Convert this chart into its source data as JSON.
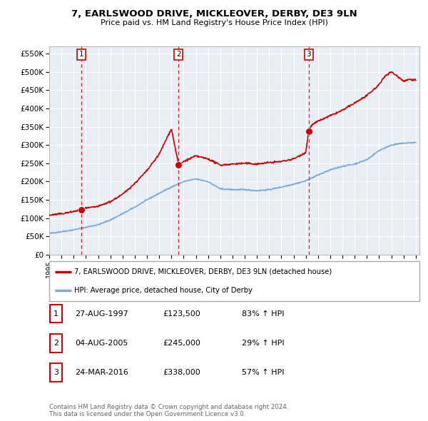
{
  "title": "7, EARLSWOOD DRIVE, MICKLEOVER, DERBY, DE3 9LN",
  "subtitle": "Price paid vs. HM Land Registry's House Price Index (HPI)",
  "ylabel_ticks": [
    "£0",
    "£50K",
    "£100K",
    "£150K",
    "£200K",
    "£250K",
    "£300K",
    "£350K",
    "£400K",
    "£450K",
    "£500K",
    "£550K"
  ],
  "ytick_values": [
    0,
    50000,
    100000,
    150000,
    200000,
    250000,
    300000,
    350000,
    400000,
    450000,
    500000,
    550000
  ],
  "ylim": [
    0,
    570000
  ],
  "xlim_start": 1995.0,
  "xlim_end": 2025.3,
  "transactions": [
    {
      "num": 1,
      "date": "27-AUG-1997",
      "year": 1997.65,
      "price": 123500,
      "pct": "83%",
      "dir": "↑"
    },
    {
      "num": 2,
      "date": "04-AUG-2005",
      "year": 2005.59,
      "price": 245000,
      "pct": "29%",
      "dir": "↑"
    },
    {
      "num": 3,
      "date": "24-MAR-2016",
      "year": 2016.23,
      "price": 338000,
      "pct": "57%",
      "dir": "↑"
    }
  ],
  "hpi_line_color": "#7aaadd",
  "price_line_color": "#cc0000",
  "dashed_line_color": "#cc0000",
  "transaction_marker_color": "#cc0000",
  "background_color": "#ffffff",
  "plot_bg_color": "#e8eef4",
  "grid_color": "#ffffff",
  "legend_label_red": "7, EARLSWOOD DRIVE, MICKLEOVER, DERBY, DE3 9LN (detached house)",
  "legend_label_blue": "HPI: Average price, detached house, City of Derby",
  "footer": "Contains HM Land Registry data © Crown copyright and database right 2024.\nThis data is licensed under the Open Government Licence v3.0.",
  "xtick_years": [
    1995,
    1996,
    1997,
    1998,
    1999,
    2000,
    2001,
    2002,
    2003,
    2004,
    2005,
    2006,
    2007,
    2008,
    2009,
    2010,
    2011,
    2012,
    2013,
    2014,
    2015,
    2016,
    2017,
    2018,
    2019,
    2020,
    2021,
    2022,
    2023,
    2024,
    2025
  ],
  "hpi_keypoints_x": [
    1995,
    1996,
    1997,
    1998,
    1999,
    2000,
    2001,
    2002,
    2003,
    2004,
    2005,
    2006,
    2007,
    2008,
    2009,
    2010,
    2011,
    2012,
    2013,
    2014,
    2015,
    2016,
    2017,
    2018,
    2019,
    2020,
    2021,
    2022,
    2023,
    2024,
    2025
  ],
  "hpi_keypoints_y": [
    58000,
    63000,
    68000,
    75000,
    82000,
    95000,
    112000,
    130000,
    150000,
    168000,
    185000,
    200000,
    207000,
    200000,
    180000,
    178000,
    178000,
    175000,
    178000,
    185000,
    193000,
    202000,
    218000,
    232000,
    242000,
    248000,
    260000,
    285000,
    300000,
    305000,
    307000
  ],
  "price_keypoints_x": [
    1995,
    1996,
    1997,
    1997.65,
    1998,
    1999,
    2000,
    2001,
    2002,
    2003,
    2004,
    2004.5,
    2005.0,
    2005.59,
    2006,
    2007,
    2008,
    2009,
    2010,
    2011,
    2012,
    2013,
    2014,
    2015,
    2016.0,
    2016.23,
    2016.5,
    2017,
    2018,
    2019,
    2020,
    2021,
    2022,
    2022.5,
    2023,
    2023.5,
    2024,
    2024.5,
    2025
  ],
  "price_keypoints_y": [
    108000,
    112000,
    118000,
    123500,
    127000,
    132000,
    145000,
    165000,
    195000,
    230000,
    275000,
    310000,
    345000,
    245000,
    255000,
    270000,
    262000,
    245000,
    248000,
    250000,
    248000,
    252000,
    255000,
    262000,
    280000,
    338000,
    355000,
    365000,
    380000,
    395000,
    415000,
    435000,
    465000,
    490000,
    500000,
    488000,
    475000,
    480000,
    478000
  ]
}
